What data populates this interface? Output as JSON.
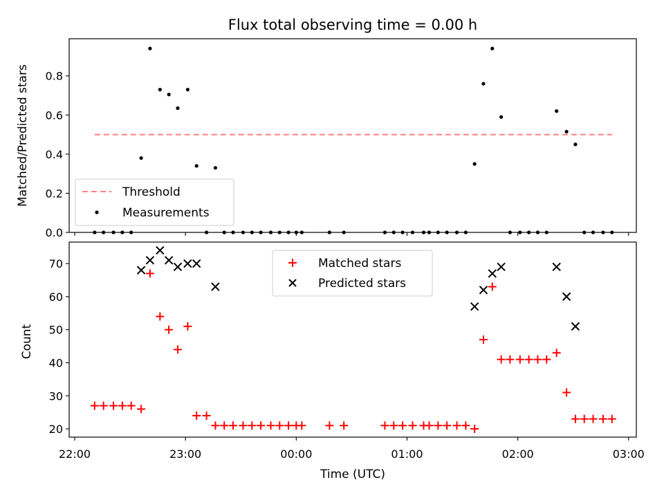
{
  "chart_data": {
    "title": "Flux total observing time = 0.00 h",
    "xlabel": "Time (UTC)",
    "x_tick_labels": [
      "22:00",
      "23:00",
      "00:00",
      "01:00",
      "02:00",
      "03:00"
    ],
    "x_tick_values": [
      22,
      23,
      24,
      25,
      26,
      27
    ],
    "xlim": [
      21.95,
      27.07
    ],
    "panels": [
      {
        "type": "scatter",
        "ylabel": "Matched/Predicted stars",
        "ylim": [
          0,
          0.99
        ],
        "yticks": [
          0.0,
          0.2,
          0.4,
          0.6,
          0.8
        ],
        "ytick_labels": [
          "0.0",
          "0.2",
          "0.4",
          "0.6",
          "0.8"
        ],
        "legend_position": "lower-left",
        "threshold": {
          "label": "Threshold",
          "value": 0.5,
          "x_range": [
            22.18,
            26.85
          ],
          "color": "#ff7f7f"
        },
        "series": [
          {
            "name": "Measurements",
            "color": "#000000",
            "marker": "dot",
            "x": [
              22.18,
              22.26,
              22.35,
              22.43,
              22.51,
              22.6,
              22.68,
              22.77,
              22.85,
              22.93,
              23.02,
              23.1,
              23.19,
              23.27,
              23.35,
              23.43,
              23.52,
              23.6,
              23.68,
              23.77,
              23.85,
              23.93,
              24.0,
              24.05,
              24.3,
              24.43,
              24.8,
              24.88,
              24.96,
              25.05,
              25.15,
              25.2,
              25.28,
              25.36,
              25.45,
              25.53,
              25.61,
              25.69,
              25.77,
              25.85,
              25.93,
              26.02,
              26.1,
              26.18,
              26.26,
              26.35,
              26.44,
              26.52,
              26.6,
              26.68,
              26.77,
              26.85
            ],
            "y": [
              0,
              0,
              0,
              0,
              0,
              0.38,
              0.94,
              0.73,
              0.705,
              0.635,
              0.73,
              0.34,
              0,
              0.33,
              0,
              0,
              0,
              0,
              0,
              0,
              0,
              0,
              0,
              0,
              0,
              0,
              0,
              0,
              0,
              0,
              0,
              0,
              0,
              0,
              0,
              0,
              0.35,
              0.76,
              0.94,
              0.59,
              0,
              0,
              0,
              0,
              0,
              0.62,
              0.515,
              0.45,
              0,
              0,
              0,
              0
            ]
          }
        ]
      },
      {
        "type": "scatter",
        "ylabel": "Count",
        "ylim": [
          17.5,
          76.5
        ],
        "yticks": [
          20,
          30,
          40,
          50,
          60,
          70
        ],
        "ytick_labels": [
          "20",
          "30",
          "40",
          "50",
          "60",
          "70"
        ],
        "legend_position": "upper-center",
        "series": [
          {
            "name": "Matched stars",
            "color": "#ff0000",
            "marker": "plus",
            "x": [
              22.18,
              22.26,
              22.35,
              22.43,
              22.51,
              22.6,
              22.68,
              22.77,
              22.85,
              22.93,
              23.02,
              23.1,
              23.19,
              23.27,
              23.35,
              23.43,
              23.52,
              23.6,
              23.68,
              23.77,
              23.85,
              23.93,
              24.0,
              24.05,
              24.3,
              24.43,
              24.8,
              24.88,
              24.96,
              25.05,
              25.15,
              25.2,
              25.28,
              25.36,
              25.45,
              25.53,
              25.61,
              25.69,
              25.77,
              25.85,
              25.93,
              26.02,
              26.1,
              26.18,
              26.26,
              26.35,
              26.44,
              26.52,
              26.6,
              26.68,
              26.77,
              26.85
            ],
            "y": [
              27,
              27,
              27,
              27,
              27,
              26,
              67,
              54,
              50,
              44,
              51,
              24,
              24,
              21,
              21,
              21,
              21,
              21,
              21,
              21,
              21,
              21,
              21,
              21,
              21,
              21,
              21,
              21,
              21,
              21,
              21,
              21,
              21,
              21,
              21,
              21,
              20,
              47,
              63,
              41,
              41,
              41,
              41,
              41,
              41,
              43,
              31,
              23,
              23,
              23,
              23,
              23
            ]
          },
          {
            "name": "Predicted stars",
            "color": "#000000",
            "marker": "x",
            "x": [
              22.6,
              22.68,
              22.77,
              22.85,
              22.93,
              23.02,
              23.1,
              23.27,
              25.61,
              25.69,
              25.77,
              25.85,
              26.35,
              26.44,
              26.52
            ],
            "y": [
              68,
              71,
              74,
              71,
              69,
              70,
              70,
              63,
              57,
              62,
              67,
              69,
              69,
              60,
              51
            ]
          }
        ]
      }
    ]
  }
}
